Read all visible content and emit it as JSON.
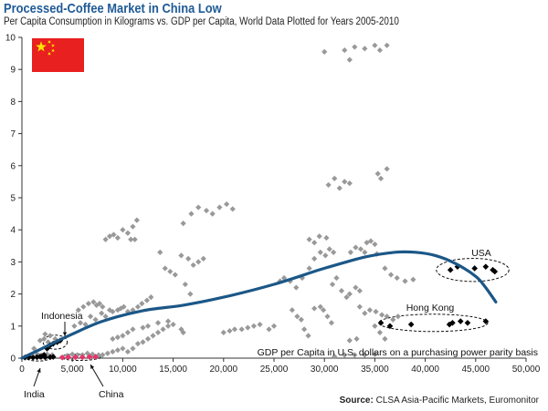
{
  "chart_data": {
    "type": "scatter",
    "title": "Processed-Coffee Market in China Low",
    "subtitle": "Per Capita Consumption in Kilograms vs. GDP per Capita, World Data Plotted for Years 2005-2010",
    "xlabel": "GDP per Capita in U.S. dollars on a purchasing power parity basis",
    "ylabel": "",
    "xlim": [
      0,
      50000
    ],
    "ylim": [
      0,
      10
    ],
    "x_ticks": [
      0,
      5000,
      10000,
      15000,
      20000,
      25000,
      30000,
      35000,
      40000,
      45000,
      50000
    ],
    "x_tick_labels": [
      "0",
      "5,000",
      "10,000",
      "15,000",
      "20,000",
      "25,000",
      "30,000",
      "35,000",
      "40,000",
      "45,000",
      "50,000"
    ],
    "y_ticks": [
      0,
      1,
      2,
      3,
      4,
      5,
      6,
      7,
      8,
      9,
      10
    ],
    "y_tick_labels": [
      "0",
      "1",
      "2",
      "3",
      "4",
      "5",
      "6",
      "7",
      "8",
      "9",
      "10"
    ],
    "grid": false,
    "series": [
      {
        "name": "World",
        "color": "#999999",
        "points": [
          [
            800,
            0.05
          ],
          [
            1500,
            0.1
          ],
          [
            2000,
            0.08
          ],
          [
            2500,
            0.12
          ],
          [
            3000,
            0.1
          ],
          [
            1200,
            0.3
          ],
          [
            1800,
            0.55
          ],
          [
            2200,
            0.6
          ],
          [
            2600,
            0.5
          ],
          [
            3100,
            0.45
          ],
          [
            2300,
            0.75
          ],
          [
            2800,
            0.7
          ],
          [
            3300,
            0.6
          ],
          [
            4500,
            0.08
          ],
          [
            5000,
            0.12
          ],
          [
            5500,
            0.1
          ],
          [
            6000,
            0.1
          ],
          [
            6500,
            0.15
          ],
          [
            7000,
            0.12
          ],
          [
            7600,
            0.1
          ],
          [
            5200,
            1.0
          ],
          [
            5800,
            1.1
          ],
          [
            6300,
            1.05
          ],
          [
            6800,
            1.3
          ],
          [
            7300,
            1.2
          ],
          [
            5600,
            1.5
          ],
          [
            6100,
            1.6
          ],
          [
            6600,
            1.7
          ],
          [
            7100,
            1.75
          ],
          [
            7400,
            1.65
          ],
          [
            7700,
            1.7
          ],
          [
            8000,
            1.6
          ],
          [
            7900,
            1.4
          ],
          [
            8300,
            1.3
          ],
          [
            8700,
            1.5
          ],
          [
            9000,
            1.45
          ],
          [
            9500,
            1.5
          ],
          [
            9800,
            1.55
          ],
          [
            10100,
            1.6
          ],
          [
            10500,
            1.45
          ],
          [
            11000,
            1.5
          ],
          [
            11500,
            1.6
          ],
          [
            11900,
            1.7
          ],
          [
            12400,
            1.8
          ],
          [
            12800,
            1.9
          ],
          [
            8000,
            0.1
          ],
          [
            8500,
            0.15
          ],
          [
            9000,
            0.2
          ],
          [
            9500,
            0.25
          ],
          [
            10000,
            0.3
          ],
          [
            10500,
            0.2
          ],
          [
            11000,
            0.3
          ],
          [
            11500,
            0.45
          ],
          [
            12000,
            0.5
          ],
          [
            12500,
            0.6
          ],
          [
            13000,
            0.7
          ],
          [
            13500,
            0.8
          ],
          [
            14000,
            0.9
          ],
          [
            14500,
            1.0
          ],
          [
            15000,
            1.05
          ],
          [
            13500,
            1.1
          ],
          [
            14500,
            1.15
          ],
          [
            15800,
            0.9
          ],
          [
            16000,
            0.8
          ],
          [
            9000,
            0.6
          ],
          [
            9500,
            0.65
          ],
          [
            10000,
            0.7
          ],
          [
            10500,
            0.8
          ],
          [
            11000,
            0.9
          ],
          [
            12000,
            0.95
          ],
          [
            12500,
            1.0
          ],
          [
            8300,
            3.7
          ],
          [
            8700,
            3.8
          ],
          [
            9100,
            3.85
          ],
          [
            9500,
            3.75
          ],
          [
            10000,
            4.0
          ],
          [
            10500,
            3.9
          ],
          [
            11000,
            4.1
          ],
          [
            11400,
            4.3
          ],
          [
            10800,
            3.7
          ],
          [
            11200,
            3.7
          ],
          [
            15800,
            3.2
          ],
          [
            16500,
            3.1
          ],
          [
            17000,
            2.9
          ],
          [
            17500,
            3.0
          ],
          [
            18000,
            3.1
          ],
          [
            16000,
            4.2
          ],
          [
            16800,
            4.5
          ],
          [
            17500,
            4.7
          ],
          [
            18300,
            4.6
          ],
          [
            18900,
            4.5
          ],
          [
            19600,
            4.7
          ],
          [
            20300,
            4.8
          ],
          [
            20900,
            4.65
          ],
          [
            13700,
            3.3
          ],
          [
            14200,
            2.8
          ],
          [
            14700,
            2.7
          ],
          [
            15200,
            2.6
          ],
          [
            16200,
            2.3
          ],
          [
            16700,
            2.0
          ],
          [
            20000,
            0.8
          ],
          [
            20600,
            0.85
          ],
          [
            21100,
            0.9
          ],
          [
            21800,
            0.9
          ],
          [
            22400,
            0.95
          ],
          [
            23000,
            1.0
          ],
          [
            23600,
            1.05
          ],
          [
            24500,
            0.9
          ],
          [
            25000,
            1.0
          ],
          [
            25600,
            2.4
          ],
          [
            26000,
            2.5
          ],
          [
            26600,
            2.4
          ],
          [
            27200,
            2.2
          ],
          [
            27800,
            2.5
          ],
          [
            26800,
            1.5
          ],
          [
            27300,
            1.3
          ],
          [
            27700,
            1.2
          ],
          [
            28000,
            0.9
          ],
          [
            28400,
            0.7
          ],
          [
            29000,
            1.55
          ],
          [
            29600,
            1.6
          ],
          [
            29900,
            1.5
          ],
          [
            30300,
            1.3
          ],
          [
            30700,
            1.1
          ],
          [
            28500,
            2.8
          ],
          [
            29000,
            3.1
          ],
          [
            29600,
            3.3
          ],
          [
            30100,
            3.2
          ],
          [
            30500,
            3.4
          ],
          [
            30900,
            3.3
          ],
          [
            28500,
            3.7
          ],
          [
            29000,
            3.6
          ],
          [
            29500,
            3.8
          ],
          [
            30200,
            3.75
          ],
          [
            30800,
            2.3
          ],
          [
            31200,
            2.5
          ],
          [
            31700,
            2.1
          ],
          [
            32200,
            1.9
          ],
          [
            32500,
            2.0
          ],
          [
            33100,
            2.2
          ],
          [
            33500,
            2.1
          ],
          [
            30400,
            5.4
          ],
          [
            31000,
            5.6
          ],
          [
            31500,
            5.3
          ],
          [
            32000,
            5.5
          ],
          [
            32500,
            5.45
          ],
          [
            30000,
            9.55
          ],
          [
            32000,
            9.6
          ],
          [
            33000,
            9.7
          ],
          [
            34000,
            9.65
          ],
          [
            35000,
            9.75
          ],
          [
            35500,
            9.6
          ],
          [
            36200,
            9.75
          ],
          [
            32500,
            9.3
          ],
          [
            35300,
            5.75
          ],
          [
            35600,
            5.6
          ],
          [
            36200,
            5.9
          ],
          [
            34200,
            3.6
          ],
          [
            34600,
            3.65
          ],
          [
            35000,
            3.55
          ],
          [
            32600,
            3.3
          ],
          [
            33100,
            3.45
          ],
          [
            33600,
            3.4
          ],
          [
            34000,
            3.3
          ],
          [
            35200,
            3.25
          ],
          [
            36000,
            2.8
          ],
          [
            36600,
            2.6
          ],
          [
            37200,
            2.5
          ],
          [
            38000,
            2.4
          ],
          [
            38800,
            2.45
          ],
          [
            33500,
            1.6
          ],
          [
            34000,
            1.4
          ],
          [
            34500,
            1.5
          ],
          [
            35100,
            1.45
          ],
          [
            35700,
            1.35
          ],
          [
            36200,
            1.3
          ],
          [
            36800,
            1.2
          ],
          [
            37300,
            1.3
          ],
          [
            35000,
            1.0
          ],
          [
            35500,
            0.8
          ],
          [
            36000,
            0.6
          ],
          [
            31000,
            0.05
          ],
          [
            32000,
            0.1
          ],
          [
            33000,
            0.1
          ],
          [
            34000,
            0.1
          ],
          [
            35000,
            0.12
          ],
          [
            32500,
            0.55
          ],
          [
            33200,
            0.6
          ]
        ]
      },
      {
        "name": "USA",
        "color": "#000000",
        "points": [
          [
            42500,
            2.75
          ],
          [
            43200,
            2.85
          ],
          [
            44900,
            2.8
          ],
          [
            46000,
            2.85
          ],
          [
            46700,
            2.75
          ],
          [
            46900,
            2.7
          ]
        ]
      },
      {
        "name": "Hong Kong",
        "color": "#000000",
        "points": [
          [
            35600,
            1.1
          ],
          [
            36500,
            1.0
          ],
          [
            38600,
            1.05
          ],
          [
            42400,
            1.05
          ],
          [
            42700,
            1.1
          ],
          [
            43500,
            1.15
          ],
          [
            44200,
            1.1
          ],
          [
            46000,
            1.15
          ]
        ]
      },
      {
        "name": "Indonesia",
        "color": "#000000",
        "points": [
          [
            1800,
            0.05
          ],
          [
            2200,
            0.1
          ],
          [
            2500,
            0.3
          ],
          [
            2800,
            0.4
          ],
          [
            3100,
            0.45
          ],
          [
            3500,
            0.5
          ],
          [
            3800,
            0.55
          ]
        ]
      },
      {
        "name": "India",
        "color": "#000000",
        "points": [
          [
            300,
            0.02
          ],
          [
            700,
            0.03
          ],
          [
            1100,
            0.02
          ],
          [
            1500,
            0.03
          ],
          [
            1900,
            0.04
          ],
          [
            2300,
            0.03
          ],
          [
            2800,
            0.03
          ],
          [
            3100,
            0.04
          ]
        ]
      },
      {
        "name": "China",
        "color": "#e8336b",
        "points": [
          [
            4000,
            0.02
          ],
          [
            4600,
            0.03
          ],
          [
            5300,
            0.03
          ],
          [
            6000,
            0.03
          ],
          [
            6700,
            0.04
          ],
          [
            7300,
            0.04
          ]
        ]
      }
    ],
    "trend_line": {
      "color": "#1b5787",
      "points": [
        [
          0,
          0
        ],
        [
          2000,
          0.3
        ],
        [
          5000,
          0.75
        ],
        [
          8000,
          1.15
        ],
        [
          12000,
          1.48
        ],
        [
          16000,
          1.65
        ],
        [
          20000,
          1.9
        ],
        [
          25000,
          2.3
        ],
        [
          30000,
          2.8
        ],
        [
          34000,
          3.15
        ],
        [
          37000,
          3.3
        ],
        [
          39000,
          3.3
        ],
        [
          41000,
          3.2
        ],
        [
          43000,
          2.95
        ],
        [
          45000,
          2.55
        ],
        [
          46000,
          2.2
        ],
        [
          47000,
          1.75
        ]
      ]
    },
    "annotations": [
      {
        "label": "USA",
        "x": 44700,
        "y": 2.75,
        "rx": 3600,
        "ry": 0.36
      },
      {
        "label": "Hong Kong",
        "x": 40800,
        "y": 1.1,
        "rx": 5400,
        "ry": 0.27
      },
      {
        "label": "Indonesia",
        "x": 3300,
        "y": 0.5,
        "rx": 1200,
        "ry": 0.22
      },
      {
        "label": "India",
        "x": 1600,
        "y": 0.03,
        "rx": 1300,
        "ry": 0.12
      },
      {
        "label": "China",
        "x": 5800,
        "y": 0.03,
        "rx": 2000,
        "ry": 0.1
      }
    ]
  },
  "flag": {
    "colors": {
      "red": "#e8201f",
      "yellow": "#ffe600"
    }
  },
  "source": {
    "label": "Source:",
    "text": "CLSA Asia-Pacific Markets, Euromonitor"
  }
}
